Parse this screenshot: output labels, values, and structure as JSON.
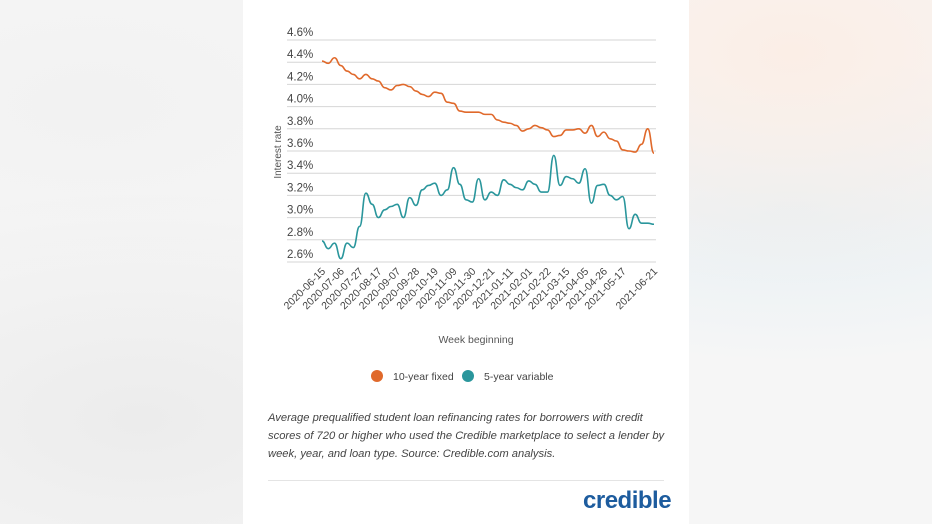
{
  "chart_data": {
    "type": "line",
    "title": "",
    "xlabel": "Week beginning",
    "ylabel": "Interest rate",
    "ylim": [
      2.6,
      4.6
    ],
    "yticks": [
      "2.6%",
      "2.8%",
      "3.0%",
      "3.2%",
      "3.4%",
      "3.6%",
      "3.8%",
      "4.0%",
      "4.2%",
      "4.4%",
      "4.6%"
    ],
    "x_start": "2020-06-15",
    "x_end": "2021-06-21",
    "x_interval": "weekly",
    "xtick_labels": [
      "2020-06-15",
      "2020-07-06",
      "2020-07-27",
      "2020-08-17",
      "2020-09-07",
      "2020-09-28",
      "2020-10-19",
      "2020-11-09",
      "2020-11-30",
      "2020-12-21",
      "2021-01-11",
      "2021-02-01",
      "2021-02-22",
      "2021-03-15",
      "2021-04-05",
      "2021-04-26",
      "2021-05-17",
      "2021-06-21"
    ],
    "grid": true,
    "legend_placement": "bottom",
    "series": [
      {
        "name": "10-year fixed",
        "color": "#e0692b",
        "values": [
          4.41,
          4.39,
          4.44,
          4.37,
          4.32,
          4.29,
          4.25,
          4.29,
          4.25,
          4.23,
          4.17,
          4.15,
          4.19,
          4.2,
          4.18,
          4.14,
          4.11,
          4.09,
          4.13,
          4.12,
          4.04,
          4.03,
          3.96,
          3.95,
          3.95,
          3.95,
          3.93,
          3.93,
          3.88,
          3.86,
          3.85,
          3.83,
          3.78,
          3.8,
          3.83,
          3.81,
          3.79,
          3.73,
          3.74,
          3.79,
          3.79,
          3.8,
          3.76,
          3.83,
          3.73,
          3.77,
          3.71,
          3.69,
          3.61,
          3.6,
          3.59,
          3.66,
          3.8,
          3.58
        ]
      },
      {
        "name": "5-year variable",
        "color": "#2a969c",
        "values": [
          2.79,
          2.72,
          2.77,
          2.63,
          2.77,
          2.73,
          2.92,
          3.22,
          3.12,
          3.0,
          3.07,
          3.1,
          3.12,
          3.0,
          3.18,
          3.11,
          3.25,
          3.29,
          3.31,
          3.2,
          3.25,
          3.45,
          3.3,
          3.16,
          3.14,
          3.35,
          3.16,
          3.23,
          3.2,
          3.34,
          3.3,
          3.27,
          3.25,
          3.33,
          3.3,
          3.23,
          3.23,
          3.56,
          3.29,
          3.37,
          3.35,
          3.31,
          3.44,
          3.13,
          3.29,
          3.3,
          3.2,
          3.16,
          3.19,
          2.9,
          3.03,
          2.95,
          2.95,
          2.94
        ]
      }
    ]
  },
  "caption": "Average prequalified student loan refinancing rates for borrowers with credit scores of 720 or higher who used the Credible marketplace to select a lender by week, year, and loan type. Source: Credible.com analysis.",
  "logo": "credible"
}
